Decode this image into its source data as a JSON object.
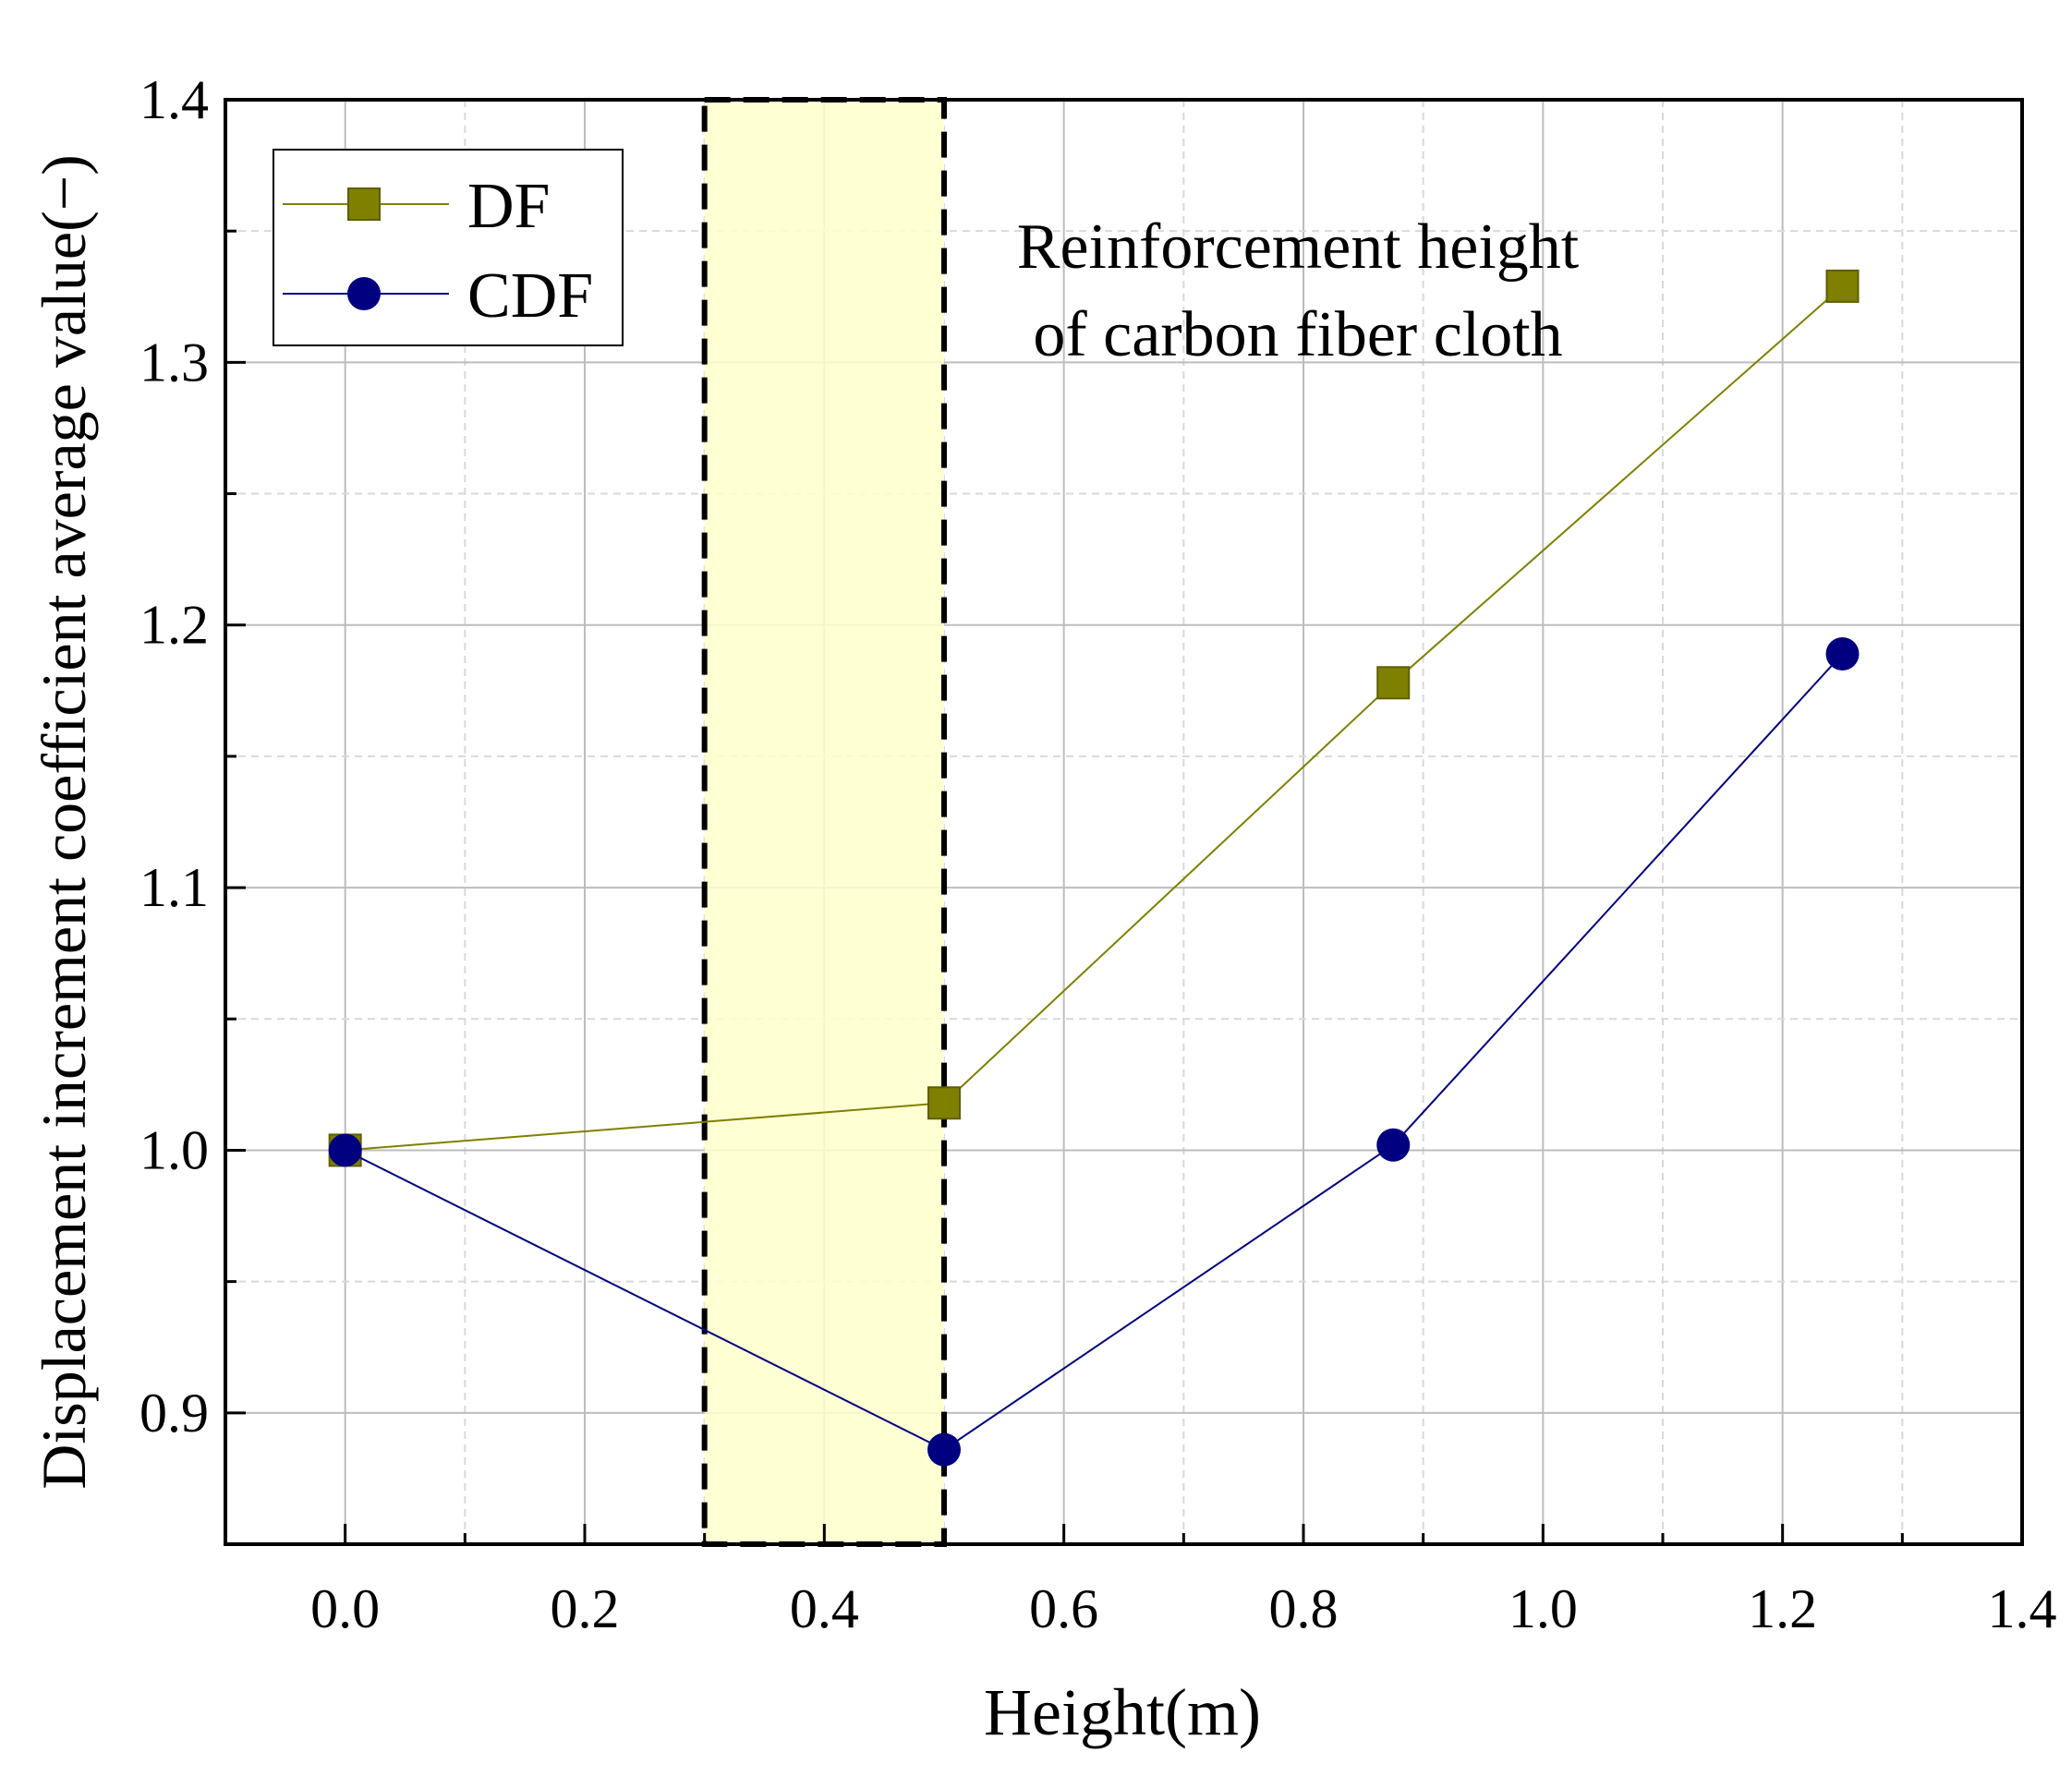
{
  "chart_data": {
    "type": "line",
    "title": "",
    "xlabel": "Height(m)",
    "ylabel": "Displacement increment coefficient average value(−)",
    "xlim": [
      -0.1,
      1.4
    ],
    "ylim": [
      0.85,
      1.4
    ],
    "x_ticks": [
      "0.0",
      "0.2",
      "0.4",
      "0.6",
      "0.8",
      "1.0",
      "1.2",
      "1.4"
    ],
    "y_ticks": [
      "0.9",
      "1.0",
      "1.1",
      "1.2",
      "1.3",
      "1.4"
    ],
    "grid": true,
    "legend_position": "top-left",
    "series": [
      {
        "name": "DF",
        "marker": "square",
        "color": "#808000",
        "x": [
          0.0,
          0.5,
          0.875,
          1.25
        ],
        "y": [
          1.0,
          1.018,
          1.178,
          1.329
        ]
      },
      {
        "name": "CDF",
        "marker": "circle",
        "color": "#000080",
        "x": [
          0.0,
          0.5,
          0.875,
          1.25
        ],
        "y": [
          1.0,
          0.886,
          1.002,
          1.189
        ]
      }
    ],
    "highlight_region": {
      "x_start": 0.3,
      "x_end": 0.5,
      "color": "#ffffcc"
    },
    "annotation": [
      "Reinforcement height",
      "of carbon fiber cloth"
    ]
  }
}
